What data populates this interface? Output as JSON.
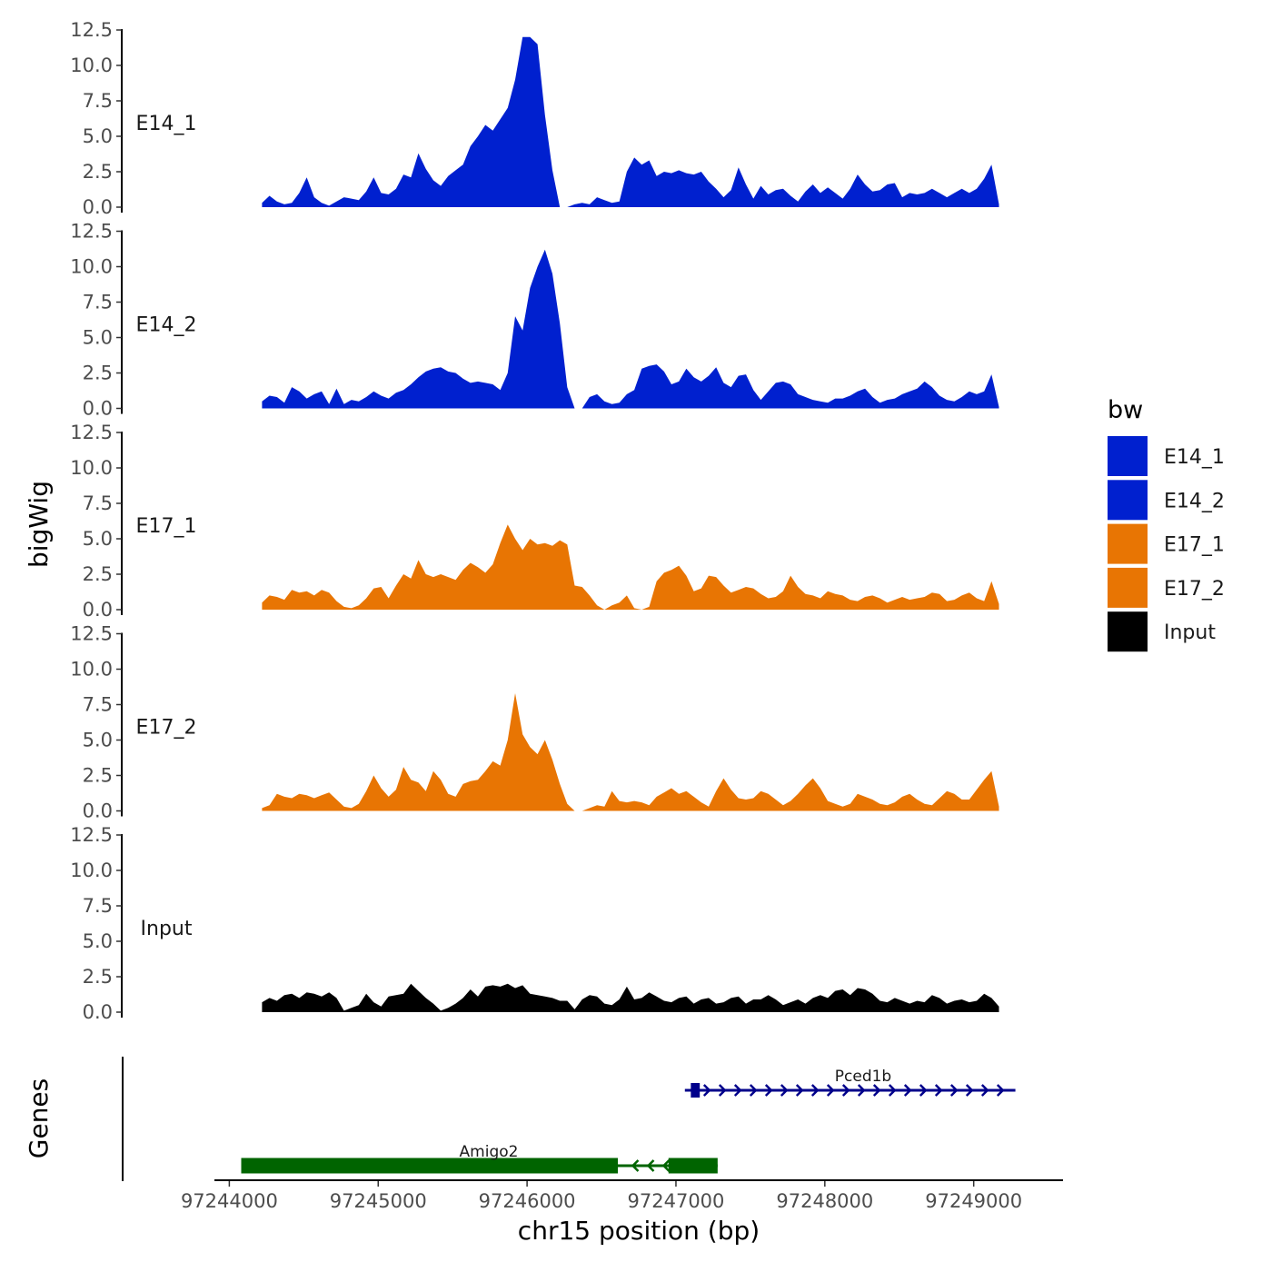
{
  "chart_data": {
    "type": "area",
    "ylabel": "bigWig",
    "xlabel": "chr15 position (bp)",
    "ylim": [
      0,
      12.5
    ],
    "yticks": [
      "0.0",
      "2.5",
      "5.0",
      "7.5",
      "10.0",
      "12.5"
    ],
    "xlim": [
      97243900,
      97249600
    ],
    "xticks": [
      97244000,
      97245000,
      97246000,
      97247000,
      97248000,
      97249000
    ],
    "xtick_labels": [
      "97244000",
      "97245000",
      "97246000",
      "97247000",
      "97248000",
      "97249000"
    ],
    "legend": {
      "title": "bw",
      "entries": [
        {
          "label": "E14_1",
          "color": "#0020CF"
        },
        {
          "label": "E14_2",
          "color": "#0020CF"
        },
        {
          "label": "E17_1",
          "color": "#E87503"
        },
        {
          "label": "E17_2",
          "color": "#E87503"
        },
        {
          "label": "Input",
          "color": "#000000"
        }
      ]
    },
    "series": [
      {
        "name": "E14_1",
        "color": "#0020CF",
        "x": [
          97244220,
          97244270,
          97244320,
          97244370,
          97244420,
          97244470,
          97244520,
          97244570,
          97244620,
          97244670,
          97244720,
          97244770,
          97244820,
          97244870,
          97244920,
          97244970,
          97245020,
          97245070,
          97245120,
          97245170,
          97245220,
          97245270,
          97245320,
          97245370,
          97245420,
          97245470,
          97245520,
          97245570,
          97245620,
          97245670,
          97245720,
          97245770,
          97245820,
          97245870,
          97245920,
          97245970,
          97246020,
          97246070,
          97246120,
          97246170,
          97246220,
          97246270,
          97246320,
          97246370,
          97246420,
          97246470,
          97246520,
          97246570,
          97246620,
          97246670,
          97246720,
          97246770,
          97246820,
          97246870,
          97246920,
          97246970,
          97247020,
          97247070,
          97247120,
          97247170,
          97247220,
          97247270,
          97247320,
          97247370,
          97247420,
          97247470,
          97247520,
          97247570,
          97247620,
          97247670,
          97247720,
          97247770,
          97247820,
          97247870,
          97247920,
          97247970,
          97248020,
          97248070,
          97248120,
          97248170,
          97248220,
          97248270,
          97248320,
          97248370,
          97248420,
          97248470,
          97248520,
          97248570,
          97248620,
          97248670,
          97248720,
          97248770,
          97248820,
          97248870,
          97248920,
          97248970,
          97249020,
          97249070,
          97249120,
          97249170
        ],
        "values": [
          0.3,
          0.8,
          0.4,
          0.2,
          0.3,
          1.0,
          2.1,
          0.7,
          0.3,
          0.1,
          0.4,
          0.7,
          0.6,
          0.5,
          1.1,
          2.1,
          1.0,
          0.9,
          1.3,
          2.3,
          2.1,
          3.8,
          2.7,
          1.9,
          1.5,
          2.2,
          2.6,
          3.0,
          4.3,
          5.0,
          5.8,
          5.4,
          6.2,
          7.0,
          9.0,
          12.0,
          12.0,
          11.5,
          6.5,
          2.6,
          0.0,
          0.0,
          0.2,
          0.3,
          0.2,
          0.7,
          0.5,
          0.3,
          0.4,
          2.5,
          3.5,
          3.0,
          3.3,
          2.2,
          2.5,
          2.4,
          2.6,
          2.4,
          2.3,
          2.5,
          1.8,
          1.3,
          0.7,
          1.2,
          2.8,
          1.6,
          0.6,
          1.5,
          0.9,
          1.2,
          1.3,
          0.8,
          0.4,
          1.1,
          1.6,
          1.0,
          1.4,
          1.0,
          0.6,
          1.3,
          2.3,
          1.6,
          1.1,
          1.2,
          1.6,
          1.7,
          0.7,
          1.0,
          0.9,
          1.0,
          1.3,
          1.0,
          0.7,
          1.0,
          1.3,
          1.0,
          1.3,
          2.0,
          3.0,
          0.2
        ]
      },
      {
        "name": "E14_2",
        "color": "#0020CF",
        "x": [
          97244220,
          97244270,
          97244320,
          97244370,
          97244420,
          97244470,
          97244520,
          97244570,
          97244620,
          97244670,
          97244720,
          97244770,
          97244820,
          97244870,
          97244920,
          97244970,
          97245020,
          97245070,
          97245120,
          97245170,
          97245220,
          97245270,
          97245320,
          97245370,
          97245420,
          97245470,
          97245520,
          97245570,
          97245620,
          97245670,
          97245720,
          97245770,
          97245820,
          97245870,
          97245920,
          97245970,
          97246020,
          97246070,
          97246120,
          97246170,
          97246220,
          97246270,
          97246320,
          97246370,
          97246420,
          97246470,
          97246520,
          97246570,
          97246620,
          97246670,
          97246720,
          97246770,
          97246820,
          97246870,
          97246920,
          97246970,
          97247020,
          97247070,
          97247120,
          97247170,
          97247220,
          97247270,
          97247320,
          97247370,
          97247420,
          97247470,
          97247520,
          97247570,
          97247620,
          97247670,
          97247720,
          97247770,
          97247820,
          97247870,
          97247920,
          97247970,
          97248020,
          97248070,
          97248120,
          97248170,
          97248220,
          97248270,
          97248320,
          97248370,
          97248420,
          97248470,
          97248520,
          97248570,
          97248620,
          97248670,
          97248720,
          97248770,
          97248820,
          97248870,
          97248920,
          97248970,
          97249020,
          97249070,
          97249120,
          97249170
        ],
        "values": [
          0.5,
          0.9,
          0.8,
          0.4,
          1.5,
          1.2,
          0.7,
          1.0,
          1.2,
          0.3,
          1.4,
          0.3,
          0.6,
          0.5,
          0.8,
          1.2,
          0.9,
          0.7,
          1.1,
          1.3,
          1.7,
          2.2,
          2.6,
          2.8,
          2.9,
          2.6,
          2.5,
          2.1,
          1.8,
          1.9,
          1.8,
          1.7,
          1.3,
          2.5,
          6.5,
          5.5,
          8.5,
          10.0,
          11.2,
          9.5,
          6.0,
          1.5,
          0.0,
          0.0,
          0.8,
          1.0,
          0.5,
          0.3,
          0.4,
          1.0,
          1.3,
          2.8,
          3.0,
          3.1,
          2.6,
          1.7,
          1.9,
          2.8,
          2.2,
          1.9,
          2.3,
          2.9,
          1.8,
          1.5,
          2.3,
          2.4,
          1.3,
          0.6,
          1.2,
          1.8,
          1.9,
          1.7,
          1.0,
          0.8,
          0.6,
          0.5,
          0.4,
          0.7,
          0.7,
          0.9,
          1.2,
          1.4,
          0.8,
          0.4,
          0.6,
          0.7,
          1.0,
          1.2,
          1.4,
          1.9,
          1.5,
          0.9,
          0.6,
          0.5,
          0.8,
          1.2,
          1.0,
          1.2,
          2.4,
          0.1
        ]
      },
      {
        "name": "E17_1",
        "color": "#E87503",
        "x": [
          97244220,
          97244270,
          97244320,
          97244370,
          97244420,
          97244470,
          97244520,
          97244570,
          97244620,
          97244670,
          97244720,
          97244770,
          97244820,
          97244870,
          97244920,
          97244970,
          97245020,
          97245070,
          97245120,
          97245170,
          97245220,
          97245270,
          97245320,
          97245370,
          97245420,
          97245470,
          97245520,
          97245570,
          97245620,
          97245670,
          97245720,
          97245770,
          97245820,
          97245870,
          97245920,
          97245970,
          97246020,
          97246070,
          97246120,
          97246170,
          97246220,
          97246270,
          97246320,
          97246370,
          97246420,
          97246470,
          97246520,
          97246570,
          97246620,
          97246670,
          97246720,
          97246770,
          97246820,
          97246870,
          97246920,
          97246970,
          97247020,
          97247070,
          97247120,
          97247170,
          97247220,
          97247270,
          97247320,
          97247370,
          97247420,
          97247470,
          97247520,
          97247570,
          97247620,
          97247670,
          97247720,
          97247770,
          97247820,
          97247870,
          97247920,
          97247970,
          97248020,
          97248070,
          97248120,
          97248170,
          97248220,
          97248270,
          97248320,
          97248370,
          97248420,
          97248470,
          97248520,
          97248570,
          97248620,
          97248670,
          97248720,
          97248770,
          97248820,
          97248870,
          97248920,
          97248970,
          97249020,
          97249070,
          97249120,
          97249170
        ],
        "values": [
          0.5,
          1.0,
          0.9,
          0.7,
          1.4,
          1.2,
          1.3,
          1.0,
          1.4,
          1.2,
          0.6,
          0.2,
          0.1,
          0.3,
          0.8,
          1.5,
          1.6,
          0.8,
          1.7,
          2.5,
          2.2,
          3.5,
          2.5,
          2.3,
          2.5,
          2.3,
          2.1,
          2.8,
          3.3,
          3.0,
          2.6,
          3.2,
          4.7,
          6.0,
          5.0,
          4.2,
          5.0,
          4.6,
          4.7,
          4.5,
          4.9,
          4.6,
          1.7,
          1.6,
          1.0,
          0.3,
          0.0,
          0.3,
          0.5,
          1.0,
          0.1,
          0.0,
          0.2,
          2.0,
          2.6,
          2.8,
          3.1,
          2.4,
          1.3,
          1.5,
          2.4,
          2.3,
          1.7,
          1.2,
          1.4,
          1.6,
          1.5,
          1.1,
          0.8,
          0.9,
          1.3,
          2.4,
          1.6,
          1.1,
          1.0,
          0.8,
          1.3,
          1.1,
          1.0,
          0.7,
          0.6,
          0.9,
          1.0,
          0.8,
          0.5,
          0.7,
          0.9,
          0.7,
          0.8,
          0.9,
          1.2,
          1.1,
          0.6,
          0.7,
          1.0,
          1.2,
          0.8,
          0.6,
          2.0,
          0.4
        ]
      },
      {
        "name": "E17_2",
        "color": "#E87503",
        "x": [
          97244220,
          97244270,
          97244320,
          97244370,
          97244420,
          97244470,
          97244520,
          97244570,
          97244620,
          97244670,
          97244720,
          97244770,
          97244820,
          97244870,
          97244920,
          97244970,
          97245020,
          97245070,
          97245120,
          97245170,
          97245220,
          97245270,
          97245320,
          97245370,
          97245420,
          97245470,
          97245520,
          97245570,
          97245620,
          97245670,
          97245720,
          97245770,
          97245820,
          97245870,
          97245920,
          97245970,
          97246020,
          97246070,
          97246120,
          97246170,
          97246220,
          97246270,
          97246320,
          97246370,
          97246420,
          97246470,
          97246520,
          97246570,
          97246620,
          97246670,
          97246720,
          97246770,
          97246820,
          97246870,
          97246920,
          97246970,
          97247020,
          97247070,
          97247120,
          97247170,
          97247220,
          97247270,
          97247320,
          97247370,
          97247420,
          97247470,
          97247520,
          97247570,
          97247620,
          97247670,
          97247720,
          97247770,
          97247820,
          97247870,
          97247920,
          97247970,
          97248020,
          97248070,
          97248120,
          97248170,
          97248220,
          97248270,
          97248320,
          97248370,
          97248420,
          97248470,
          97248520,
          97248570,
          97248620,
          97248670,
          97248720,
          97248770,
          97248820,
          97248870,
          97248920,
          97248970,
          97249020,
          97249070,
          97249120,
          97249170
        ],
        "values": [
          0.2,
          0.4,
          1.2,
          1.0,
          0.9,
          1.2,
          1.1,
          0.9,
          1.1,
          1.3,
          0.8,
          0.3,
          0.2,
          0.5,
          1.4,
          2.5,
          1.6,
          1.0,
          1.5,
          3.1,
          2.2,
          2.0,
          1.4,
          2.8,
          2.2,
          1.2,
          1.0,
          1.9,
          2.1,
          2.2,
          2.8,
          3.5,
          3.2,
          5.0,
          8.3,
          5.4,
          4.5,
          4.0,
          5.0,
          3.6,
          1.9,
          0.5,
          0.0,
          0.0,
          0.2,
          0.4,
          0.3,
          1.4,
          0.7,
          0.6,
          0.7,
          0.6,
          0.4,
          1.0,
          1.3,
          1.6,
          1.2,
          1.4,
          1.0,
          0.6,
          0.3,
          1.4,
          2.3,
          1.5,
          0.9,
          0.8,
          0.9,
          1.4,
          1.2,
          0.8,
          0.4,
          0.7,
          1.2,
          1.8,
          2.3,
          1.6,
          0.7,
          0.5,
          0.3,
          0.5,
          1.2,
          1.0,
          0.8,
          0.5,
          0.4,
          0.6,
          1.0,
          1.2,
          0.8,
          0.5,
          0.4,
          0.9,
          1.4,
          1.2,
          0.8,
          0.8,
          1.5,
          2.2,
          2.8,
          0.3
        ]
      },
      {
        "name": "Input",
        "color": "#000000",
        "x": [
          97244220,
          97244270,
          97244320,
          97244370,
          97244420,
          97244470,
          97244520,
          97244570,
          97244620,
          97244670,
          97244720,
          97244770,
          97244820,
          97244870,
          97244920,
          97244970,
          97245020,
          97245070,
          97245120,
          97245170,
          97245220,
          97245270,
          97245320,
          97245370,
          97245420,
          97245470,
          97245520,
          97245570,
          97245620,
          97245670,
          97245720,
          97245770,
          97245820,
          97245870,
          97245920,
          97245970,
          97246020,
          97246070,
          97246120,
          97246170,
          97246220,
          97246270,
          97246320,
          97246370,
          97246420,
          97246470,
          97246520,
          97246570,
          97246620,
          97246670,
          97246720,
          97246770,
          97246820,
          97246870,
          97246920,
          97246970,
          97247020,
          97247070,
          97247120,
          97247170,
          97247220,
          97247270,
          97247320,
          97247370,
          97247420,
          97247470,
          97247520,
          97247570,
          97247620,
          97247670,
          97247720,
          97247770,
          97247820,
          97247870,
          97247920,
          97247970,
          97248020,
          97248070,
          97248120,
          97248170,
          97248220,
          97248270,
          97248320,
          97248370,
          97248420,
          97248470,
          97248520,
          97248570,
          97248620,
          97248670,
          97248720,
          97248770,
          97248820,
          97248870,
          97248920,
          97248970,
          97249020,
          97249070,
          97249120,
          97249170
        ],
        "values": [
          0.7,
          1.0,
          0.8,
          1.2,
          1.3,
          1.0,
          1.4,
          1.3,
          1.1,
          1.4,
          1.0,
          0.1,
          0.3,
          0.5,
          1.3,
          0.7,
          0.4,
          1.1,
          1.2,
          1.3,
          2.0,
          1.5,
          1.0,
          0.6,
          0.1,
          0.3,
          0.6,
          1.0,
          1.6,
          1.1,
          1.8,
          1.9,
          1.8,
          2.0,
          1.7,
          1.9,
          1.3,
          1.2,
          1.1,
          1.0,
          0.8,
          0.8,
          0.2,
          0.9,
          1.2,
          1.1,
          0.6,
          0.5,
          0.9,
          1.8,
          0.9,
          1.0,
          1.4,
          1.1,
          0.8,
          0.7,
          1.0,
          1.1,
          0.6,
          0.9,
          1.0,
          0.6,
          0.7,
          1.0,
          1.1,
          0.6,
          0.9,
          0.9,
          1.2,
          0.9,
          0.5,
          0.7,
          0.9,
          0.6,
          1.0,
          1.2,
          1.0,
          1.5,
          1.6,
          1.2,
          1.7,
          1.6,
          1.3,
          0.8,
          0.7,
          1.0,
          0.8,
          0.6,
          0.8,
          0.7,
          1.2,
          1.0,
          0.6,
          0.8,
          0.9,
          0.7,
          0.8,
          1.3,
          1.0,
          0.4
        ]
      }
    ],
    "genes": {
      "ylabel": "Genes",
      "items": [
        {
          "name": "Pced1b",
          "strand": "+",
          "color": "#00008B",
          "start": 97247060,
          "end": 97249280,
          "exons": [
            [
              97247100,
              97247160
            ]
          ]
        },
        {
          "name": "Amigo2",
          "strand": "-",
          "color": "#006400",
          "start": 97244080,
          "end": 97247280,
          "exons": [
            [
              97244080,
              97246610
            ],
            [
              97246950,
              97247280
            ]
          ]
        }
      ]
    }
  }
}
